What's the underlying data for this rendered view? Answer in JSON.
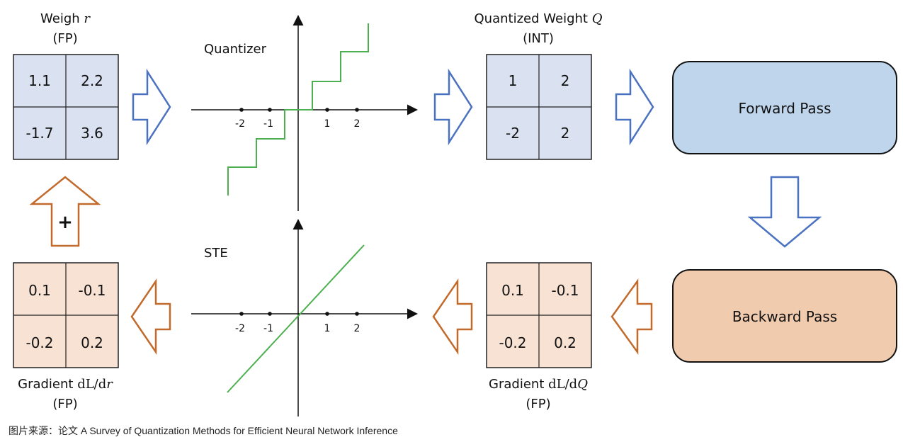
{
  "weight": {
    "title_prefix": "Weigh ",
    "title_symbol": "r",
    "subtitle": "(FP)",
    "cells": [
      "1.1",
      "2.2",
      "-1.7",
      "3.6"
    ]
  },
  "quantized": {
    "title_prefix": "Quantized Weight ",
    "title_symbol": "Q",
    "subtitle": "(INT)",
    "cells": [
      "1",
      "2",
      "-2",
      "2"
    ]
  },
  "grad_r": {
    "title_prefix": "Gradient ",
    "title_mono": "dL/d",
    "title_symbol": "r",
    "subtitle": "(FP)",
    "cells": [
      "0.1",
      "-0.1",
      "-0.2",
      "0.2"
    ]
  },
  "grad_q": {
    "title_prefix": "Gradient ",
    "title_mono": "dL/d",
    "title_symbol": "Q",
    "subtitle": "(FP)",
    "cells": [
      "0.1",
      "-0.1",
      "-0.2",
      "0.2"
    ]
  },
  "quantizer_plot": {
    "label": "Quantizer",
    "ticks": [
      "-2",
      "-1",
      "1",
      "2"
    ]
  },
  "ste_plot": {
    "label": "STE",
    "ticks": [
      "-2",
      "-1",
      "1",
      "2"
    ]
  },
  "forward_box": {
    "label": "Forward Pass"
  },
  "backward_box": {
    "label": "Backward Pass"
  },
  "update_symbol": "+",
  "caption": "图片来源：论文 A Survey of Quantization Methods for Efficient Neural Network Inference",
  "colors": {
    "blue_fill": "#dae1f1",
    "orange_fill": "#f8e2d3",
    "blue_arrow": "#4a72c0",
    "orange_arrow": "#c26a2b",
    "green_line": "#4caf50",
    "forward_fill": "#bfd5ec",
    "backward_fill": "#f1cbae"
  }
}
